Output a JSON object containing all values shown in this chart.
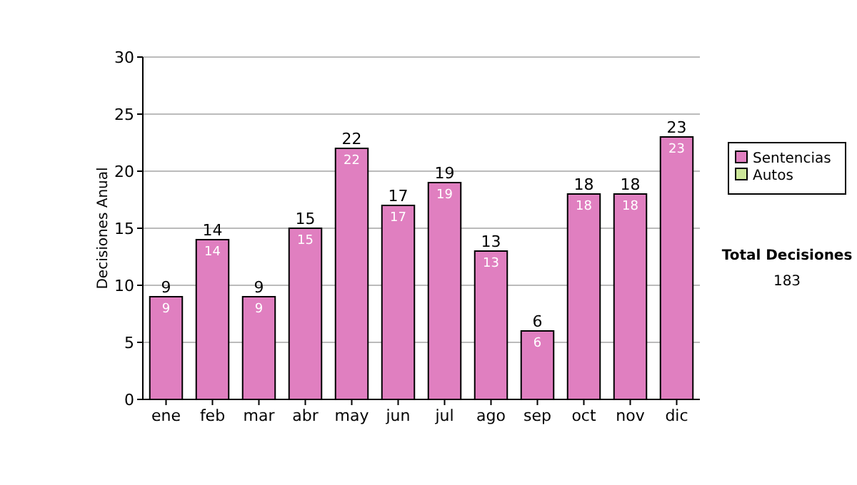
{
  "chart_data": {
    "type": "bar",
    "ylabel": "Decisiones Anual",
    "categories": [
      "ene",
      "feb",
      "mar",
      "abr",
      "may",
      "jun",
      "jul",
      "ago",
      "sep",
      "oct",
      "nov",
      "dic"
    ],
    "series": [
      {
        "name": "Sentencias",
        "color": "#e07fc0",
        "values": [
          9,
          14,
          9,
          15,
          22,
          17,
          19,
          13,
          6,
          18,
          18,
          23
        ],
        "value_labels": [
          "9",
          "14",
          "9",
          "15",
          "22",
          "17",
          "19",
          "13",
          "6",
          "18",
          "18",
          "23"
        ]
      },
      {
        "name": "Autos",
        "color": "#cce699",
        "values": [
          0,
          0,
          0,
          0,
          0,
          0,
          0,
          0,
          0,
          0,
          0,
          0
        ],
        "value_labels": [
          null,
          null,
          null,
          null,
          null,
          null,
          null,
          null,
          null,
          null,
          null,
          null
        ]
      }
    ],
    "stacked": true,
    "totals": [
      "9",
      "14",
      "9",
      "15",
      "22",
      "17",
      "19",
      "13",
      "6",
      "18",
      "18",
      "23"
    ],
    "ylim": [
      0,
      30
    ],
    "yticks": [
      0,
      5,
      10,
      15,
      20,
      25,
      30
    ],
    "grid": "y",
    "legend": "right",
    "annotations": [
      "Total Decisiones",
      "183"
    ]
  }
}
